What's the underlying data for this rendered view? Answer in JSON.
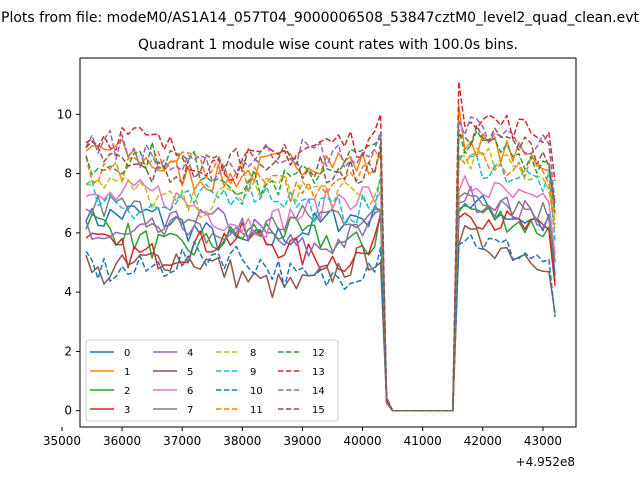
{
  "figure": {
    "suptitle": "Plots from file: modeM0/AS1A14_057T04_9000006508_53847cztM0_level2_quad_clean.evt",
    "title": "Quadrant 1 module wise count rates with 100.0s bins.",
    "offset_text": "+4.952e8"
  },
  "chart_data": {
    "type": "line",
    "title": "Quadrant 1 module wise count rates with 100.0s bins.",
    "x_offset": 495200000,
    "xlim": [
      35300,
      43550
    ],
    "ylim": [
      -0.55,
      11.9
    ],
    "x_ticks": [
      35000,
      36000,
      37000,
      38000,
      39000,
      40000,
      41000,
      42000,
      43000
    ],
    "y_ticks": [
      0,
      2,
      4,
      6,
      8,
      10
    ],
    "x_tick_labels": [
      "35000",
      "36000",
      "37000",
      "38000",
      "39000",
      "40000",
      "41000",
      "42000",
      "43000"
    ],
    "y_tick_labels": [
      "0",
      "2",
      "4",
      "6",
      "8",
      "10"
    ],
    "grid": false,
    "legend": {
      "placement": "lower-left",
      "columns": 4
    },
    "x_segments": [
      {
        "start": 35400,
        "end": 40300,
        "step": 100
      },
      {
        "start": 40400,
        "end": 40500,
        "step": 100
      },
      {
        "start": 40500,
        "end": 41500,
        "step": 100
      },
      {
        "start": 41600,
        "end": 43200,
        "step": 100
      }
    ],
    "series": [
      {
        "name": "0",
        "color": "#1f77b4",
        "dash": "solid",
        "level_pre": 5.8,
        "level_post": 6.2,
        "peak_post": 6.8,
        "spike_pre": 6.7
      },
      {
        "name": "1",
        "color": "#ff7f0e",
        "dash": "solid",
        "level_pre": 7.9,
        "level_post": 8.3,
        "peak_post": 10.3,
        "spike_pre": 8.8
      },
      {
        "name": "2",
        "color": "#2ca02c",
        "dash": "solid",
        "level_pre": 5.5,
        "level_post": 6.0,
        "peak_post": 6.7,
        "spike_pre": 6.7
      },
      {
        "name": "3",
        "color": "#d62728",
        "dash": "solid",
        "level_pre": 5.2,
        "level_post": 5.9,
        "peak_post": 6.5,
        "spike_pre": 6.6
      },
      {
        "name": "4",
        "color": "#9467bd",
        "dash": "solid",
        "level_pre": 5.7,
        "level_post": 6.4,
        "peak_post": 7.0,
        "spike_pre": 6.8
      },
      {
        "name": "5",
        "color": "#8c564b",
        "dash": "solid",
        "level_pre": 4.4,
        "level_post": 5.0,
        "peak_post": 5.6,
        "spike_pre": 5.0
      },
      {
        "name": "6",
        "color": "#e377c2",
        "dash": "solid",
        "level_pre": 6.5,
        "level_post": 6.8,
        "peak_post": 7.4,
        "spike_pre": 7.4
      },
      {
        "name": "7",
        "color": "#7f7f7f",
        "dash": "solid",
        "level_pre": 6.0,
        "level_post": 6.6,
        "peak_post": 7.2,
        "spike_pre": 6.8
      },
      {
        "name": "8",
        "color": "#bcbd22",
        "dash": "dashed",
        "level_pre": 7.0,
        "level_post": 7.8,
        "peak_post": 8.6,
        "spike_pre": 7.8
      },
      {
        "name": "9",
        "color": "#17becf",
        "dash": "dashed",
        "level_pre": 6.8,
        "level_post": 7.6,
        "peak_post": 8.4,
        "spike_pre": 8.0
      },
      {
        "name": "10",
        "color": "#1f77b4",
        "dash": "dashed",
        "level_pre": 4.6,
        "level_post": 5.0,
        "peak_post": 5.6,
        "spike_pre": 5.5
      },
      {
        "name": "11",
        "color": "#ff7f0e",
        "dash": "dashed",
        "level_pre": 7.7,
        "level_post": 7.9,
        "peak_post": 8.6,
        "spike_pre": 8.5
      },
      {
        "name": "12",
        "color": "#2ca02c",
        "dash": "dashed",
        "level_pre": 7.8,
        "level_post": 8.3,
        "peak_post": 9.5,
        "spike_pre": 9.2
      },
      {
        "name": "13",
        "color": "#d62728",
        "dash": "dashed",
        "level_pre": 8.4,
        "level_post": 9.2,
        "peak_post": 11.1,
        "spike_pre": 10.0
      },
      {
        "name": "14",
        "color": "#9467bd",
        "dash": "dashed",
        "level_pre": 8.2,
        "level_post": 8.8,
        "peak_post": 9.8,
        "spike_pre": 9.4
      },
      {
        "name": "15",
        "color": "#8c564b",
        "dash": "dashed",
        "level_pre": 8.0,
        "level_post": 8.6,
        "peak_post": 9.3,
        "spike_pre": 9.0
      }
    ]
  }
}
